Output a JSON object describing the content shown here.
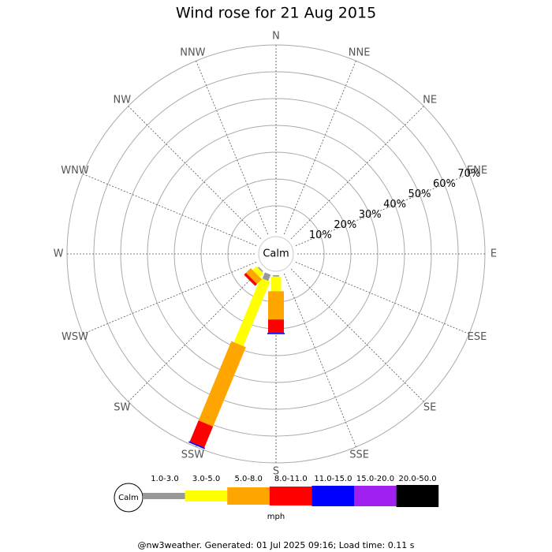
{
  "chart_data": {
    "type": "windrose",
    "title": "Wind rose for 21 Aug 2015",
    "directions": [
      "N",
      "NNE",
      "NE",
      "ENE",
      "E",
      "ESE",
      "SE",
      "SSE",
      "S",
      "SSW",
      "SW",
      "WSW",
      "W",
      "WNW",
      "NW",
      "NNW"
    ],
    "calm_label": "Calm",
    "rlim": [
      0,
      70
    ],
    "rticks": [
      {
        "value": 10,
        "label": "10%"
      },
      {
        "value": 20,
        "label": "20%"
      },
      {
        "value": 30,
        "label": "30%"
      },
      {
        "value": 40,
        "label": "40%"
      },
      {
        "value": 50,
        "label": "50%"
      },
      {
        "value": 60,
        "label": "60%"
      },
      {
        "value": 70,
        "label": "70%"
      }
    ],
    "series": [
      {
        "name": "1.0-3.0",
        "color": "#999999",
        "values": [
          0,
          0,
          0,
          0,
          0,
          0,
          0,
          0,
          0.5,
          2.5,
          0.5,
          0,
          0,
          0,
          0,
          0
        ]
      },
      {
        "name": "3.0-5.0",
        "color": "#ffff00",
        "values": [
          0,
          0,
          0,
          0,
          0,
          0,
          0,
          0,
          5.5,
          26,
          2,
          0,
          0,
          0,
          0,
          0
        ]
      },
      {
        "name": "5.0-8.0",
        "color": "#ffa500",
        "values": [
          0,
          0,
          0,
          0,
          0,
          0,
          0,
          0,
          10.5,
          32,
          2.5,
          0,
          0,
          0,
          0,
          0
        ]
      },
      {
        "name": "8.0-11.0",
        "color": "#ff0000",
        "values": [
          0,
          0,
          0,
          0,
          0,
          0,
          0,
          0,
          5,
          8.5,
          1,
          0,
          0,
          0,
          0,
          0
        ]
      },
      {
        "name": "11.0-15.0",
        "color": "#0000ff",
        "values": [
          0,
          0,
          0,
          0,
          0,
          0,
          0,
          0,
          0.5,
          0.5,
          0,
          0,
          0,
          0,
          0,
          0
        ]
      },
      {
        "name": "15.0-20.0",
        "color": "#a020f0",
        "values": [
          0,
          0,
          0,
          0,
          0,
          0,
          0,
          0,
          0,
          0,
          0,
          0,
          0,
          0,
          0,
          0
        ]
      },
      {
        "name": "20.0-50.0",
        "color": "#000000",
        "values": [
          0,
          0,
          0,
          0,
          0,
          0,
          0,
          0,
          0,
          0,
          0,
          0,
          0,
          0,
          0,
          0
        ]
      }
    ],
    "unit": "mph",
    "footer": "@nw3weather. Generated: 01 Jul 2025 09:16; Load time: 0.11 s"
  }
}
